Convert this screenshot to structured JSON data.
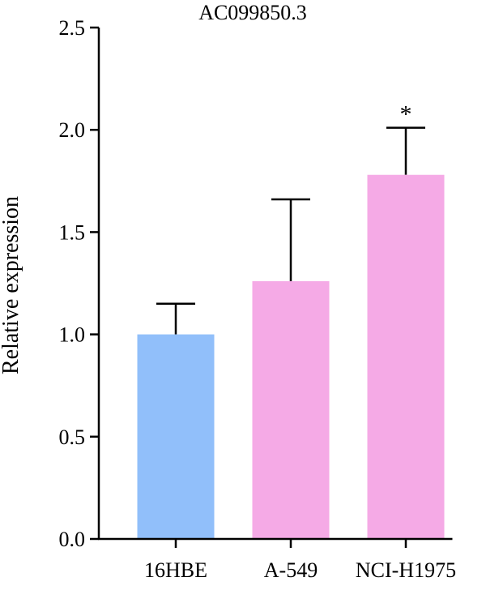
{
  "chart_data": {
    "type": "bar",
    "title": "AC099850.3",
    "xlabel": "",
    "ylabel": "Relative expression",
    "categories": [
      "16HBE",
      "A-549",
      "NCI-H1975"
    ],
    "values": [
      1.0,
      1.26,
      1.78
    ],
    "errors": [
      0.15,
      0.4,
      0.23
    ],
    "significance": [
      "",
      "",
      "*"
    ],
    "colors": [
      "#91bffa",
      "#f5aae6",
      "#f5aae6"
    ],
    "ylim": [
      0,
      2.5
    ],
    "yticks": [
      0.0,
      0.5,
      1.0,
      1.5,
      2.0,
      2.5
    ],
    "ytick_labels": [
      "0.0",
      "0.5",
      "1.0",
      "1.5",
      "2.0",
      "2.5"
    ],
    "grid": false,
    "legend": "none"
  }
}
